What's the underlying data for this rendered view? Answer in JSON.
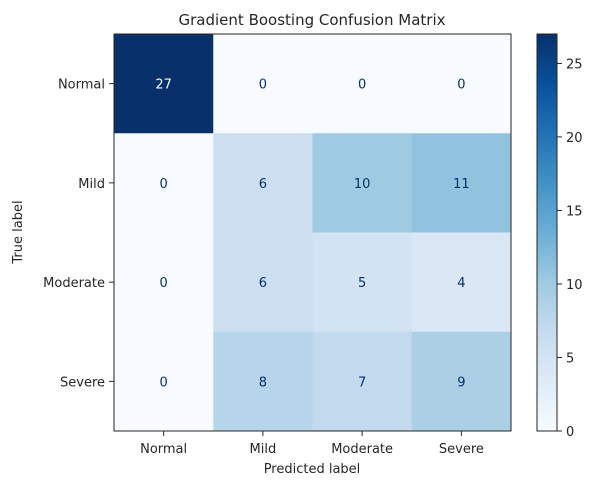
{
  "chart_data": {
    "type": "heatmap",
    "title": "Gradient Boosting Confusion Matrix",
    "xlabel": "Predicted label",
    "ylabel": "True label",
    "x_categories": [
      "Normal",
      "Mild",
      "Moderate",
      "Severe"
    ],
    "y_categories": [
      "Normal",
      "Mild",
      "Moderate",
      "Severe"
    ],
    "values": [
      [
        27,
        0,
        0,
        0
      ],
      [
        0,
        6,
        10,
        11
      ],
      [
        0,
        6,
        5,
        4
      ],
      [
        0,
        8,
        7,
        9
      ]
    ],
    "value_range": [
      0,
      27
    ],
    "colormap": "Blues",
    "colorbar_ticks": [
      0,
      5,
      10,
      15,
      20,
      25
    ],
    "grid": false
  }
}
